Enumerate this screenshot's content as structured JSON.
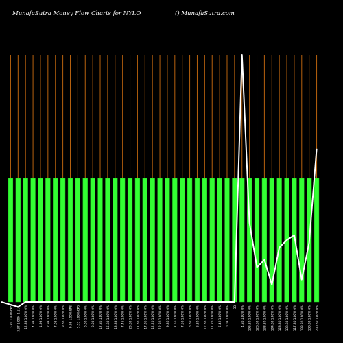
{
  "header": {
    "title": "MunafaSutra  Money Flow  Charts for NYLO",
    "site": "() MunafaSutra.com"
  },
  "chart_data": {
    "type": "bar",
    "title": "MunafaSutra  Money Flow  Charts for NYLO",
    "ylim": [
      0,
      100
    ],
    "colors": {
      "bar": "#33ff33",
      "bar_outline": "#22cc22",
      "grid": "#b8620e",
      "line": "#ffffff",
      "background": "#000000"
    },
    "categories": [
      "3.49 1.00% EPS",
      "3.37 1.00% 2.11%",
      "12.88 1.00% 0%",
      "4.93 1.00% 0%",
      "4.93 1.00% 0%",
      "2.93 1.00% 0%",
      "7.08 1.00% 0%",
      "9.86 1.00% 0%",
      "9.86 1.00% EPS",
      "5.53 1.00% EPS",
      "0.00 1.00% 0%",
      "0.00 1.00% 0%",
      "17.86 1.00% 0%",
      "15.80 1.00% 0%",
      "13.88 1.00% 0%",
      "7.46 1.00% 0%",
      "23.80 1.00% 0%",
      "17.36 1.00% 0%",
      "17.36 1.00% 0%",
      "12.20 1.00% 0%",
      "12.30 1.00% 0%",
      "9.36 1.00% 0%",
      "7.56 1.00% 0%",
      "7.58 1.00% 0%",
      "6.80 1.00% 0%",
      "6.80 1.00% 0%",
      "12.86 1.00% 0%",
      "11.20 1.00% 0%",
      "5.49 1.00% 0%",
      "0.03 1.00% 0%",
      "33",
      "4.80 1.00% 0%",
      "196.80 1.00% 0%",
      "128.80 1.00% 0%",
      "133.80 1.00% 0%",
      "104.80 1.00% 0%",
      "128.80 1.00% 0%",
      "133.80 1.00% 0%",
      "117.80 1.00% 0%",
      "133.80 1.00% 0%",
      "133.30 1.00% 0%",
      "200.80 1.00% 0%"
    ],
    "values": [
      50,
      50,
      50,
      50,
      50,
      50,
      50,
      50,
      50,
      50,
      50,
      50,
      50,
      50,
      50,
      50,
      50,
      50,
      50,
      50,
      50,
      50,
      50,
      50,
      50,
      50,
      50,
      50,
      50,
      50,
      50,
      50,
      50,
      50,
      50,
      50,
      50,
      50,
      50,
      50,
      50,
      50
    ],
    "line": [
      0,
      -2,
      0,
      0,
      0,
      0,
      0,
      0,
      0,
      0,
      0,
      0,
      0,
      0,
      0,
      0,
      0,
      0,
      0,
      0,
      0,
      0,
      0,
      0,
      0,
      0,
      0,
      0,
      0,
      0,
      0,
      100,
      32,
      14,
      17,
      7,
      22,
      25,
      27,
      9,
      24,
      62
    ]
  }
}
